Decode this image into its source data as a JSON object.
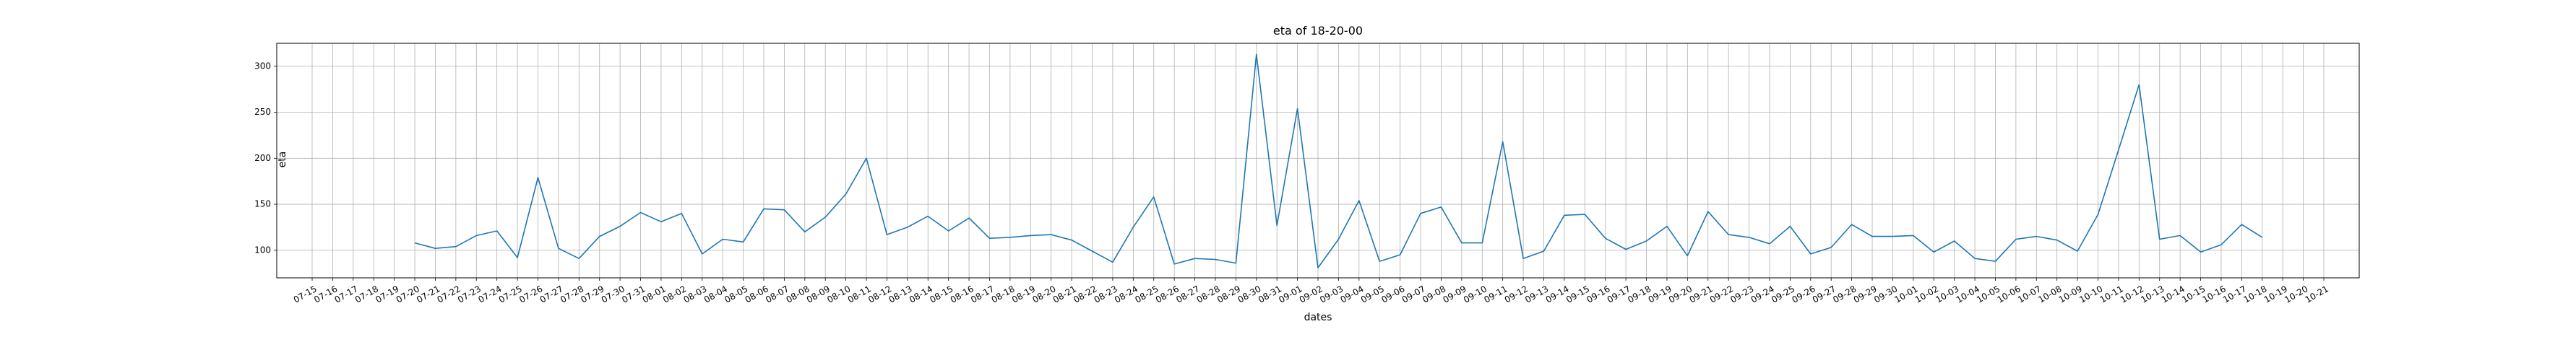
{
  "chart_data": {
    "type": "line",
    "title": "eta of 18-20-00",
    "xlabel": "dates",
    "ylabel": "eta",
    "grid": true,
    "ylim": [
      70,
      325
    ],
    "yticks": [
      100,
      150,
      200,
      250,
      300
    ],
    "x_ticks": [
      "07-15",
      "07-16",
      "07-17",
      "07-18",
      "07-19",
      "07-20",
      "07-21",
      "07-22",
      "07-23",
      "07-24",
      "07-25",
      "07-26",
      "07-27",
      "07-28",
      "07-29",
      "07-30",
      "07-31",
      "08-01",
      "08-02",
      "08-03",
      "08-04",
      "08-05",
      "08-06",
      "08-07",
      "08-08",
      "08-09",
      "08-10",
      "08-11",
      "08-12",
      "08-13",
      "08-14",
      "08-15",
      "08-16",
      "08-17",
      "08-18",
      "08-19",
      "08-20",
      "08-21",
      "08-22",
      "08-23",
      "08-24",
      "08-25",
      "08-26",
      "08-27",
      "08-28",
      "08-29",
      "08-30",
      "08-31",
      "09-01",
      "09-02",
      "09-03",
      "09-04",
      "09-05",
      "09-06",
      "09-07",
      "09-08",
      "09-09",
      "09-10",
      "09-11",
      "09-12",
      "09-13",
      "09-14",
      "09-15",
      "09-16",
      "09-17",
      "09-18",
      "09-19",
      "09-20",
      "09-21",
      "09-22",
      "09-23",
      "09-24",
      "09-25",
      "09-26",
      "09-27",
      "09-28",
      "09-29",
      "09-30",
      "10-01",
      "10-02",
      "10-03",
      "10-04",
      "10-05",
      "10-06",
      "10-07",
      "10-08",
      "10-09",
      "10-10",
      "10-11",
      "10-12",
      "10-13",
      "10-14",
      "10-15",
      "10-16",
      "10-17",
      "10-18",
      "10-19",
      "10-20",
      "10-21"
    ],
    "series": [
      {
        "x": [
          "07-20",
          "07-21",
          "07-22",
          "07-23",
          "07-24",
          "07-25",
          "07-26",
          "07-27",
          "07-28",
          "07-29",
          "07-30",
          "07-31",
          "08-01",
          "08-02",
          "08-03",
          "08-04",
          "08-05",
          "08-06",
          "08-07",
          "08-08",
          "08-09",
          "08-10",
          "08-11",
          "08-12",
          "08-13",
          "08-14",
          "08-15",
          "08-16",
          "08-17",
          "08-18",
          "08-19",
          "08-20",
          "08-21",
          "08-22",
          "08-23",
          "08-24",
          "08-25",
          "08-26",
          "08-27",
          "08-28",
          "08-29",
          "08-30",
          "08-31",
          "09-01",
          "09-02",
          "09-03",
          "09-04",
          "09-05",
          "09-06",
          "09-07",
          "09-08",
          "09-09",
          "09-10",
          "09-11",
          "09-12",
          "09-13",
          "09-14",
          "09-15",
          "09-16",
          "09-17",
          "09-18",
          "09-19",
          "09-20",
          "09-21",
          "09-22",
          "09-23",
          "09-24",
          "09-25",
          "09-26",
          "09-27",
          "09-28",
          "09-29",
          "09-30",
          "10-01",
          "10-02",
          "10-03",
          "10-04",
          "10-05",
          "10-06",
          "10-07",
          "10-08",
          "10-09",
          "10-10",
          "10-11",
          "10-12",
          "10-13",
          "10-14",
          "10-15",
          "10-16",
          "10-17",
          "10-18"
        ],
        "values": [
          108,
          102,
          104,
          116,
          121,
          92,
          179,
          102,
          91,
          115,
          126,
          141,
          131,
          140,
          96,
          112,
          109,
          145,
          144,
          120,
          136,
          161,
          200,
          117,
          125,
          137,
          121,
          135,
          113,
          114,
          116,
          117,
          111,
          99,
          87,
          125,
          158,
          85,
          91,
          90,
          86,
          313,
          127,
          254,
          81,
          112,
          154,
          88,
          95,
          140,
          147,
          108,
          108,
          218,
          91,
          99,
          138,
          139,
          113,
          101,
          110,
          126,
          94,
          142,
          117,
          114,
          107,
          126,
          96,
          103,
          128,
          115,
          115,
          116,
          98,
          110,
          91,
          88,
          112,
          115,
          111,
          99,
          139,
          209,
          280,
          112,
          116,
          98,
          106,
          128,
          114
        ]
      }
    ]
  }
}
